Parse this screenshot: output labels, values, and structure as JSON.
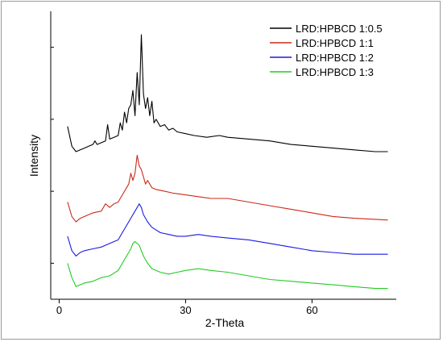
{
  "chart_data": {
    "type": "line",
    "xlabel": "2-Theta",
    "ylabel": "Intensity",
    "xlim": [
      -2,
      80
    ],
    "xticks": [
      0,
      30,
      60
    ],
    "yticks_labeled": false,
    "grid": false,
    "legend_placement": "top-right",
    "series": [
      {
        "name": "LRD:HPBCD 1:0.5",
        "color": "#000000",
        "offset": 4.1,
        "x": [
          2,
          3,
          4,
          5,
          6,
          7,
          8,
          8.5,
          9,
          10,
          11,
          11.5,
          12,
          13,
          14,
          14.5,
          15,
          15.5,
          16,
          16.5,
          17,
          17.5,
          18,
          18.5,
          19,
          19.5,
          20,
          20.5,
          21,
          21.5,
          22,
          22.5,
          23,
          24,
          25,
          26,
          27,
          28,
          30,
          32,
          35,
          38,
          40,
          45,
          50,
          55,
          60,
          65,
          70,
          75,
          78
        ],
        "y": [
          0.7,
          0.15,
          0.0,
          0.05,
          0.1,
          0.15,
          0.2,
          0.3,
          0.2,
          0.25,
          0.3,
          0.75,
          0.35,
          0.4,
          0.45,
          0.8,
          0.6,
          1.1,
          0.8,
          1.2,
          1.3,
          1.7,
          1.0,
          2.2,
          1.3,
          3.25,
          1.6,
          1.2,
          1.5,
          1.0,
          1.4,
          0.8,
          0.9,
          0.7,
          0.75,
          0.6,
          0.65,
          0.55,
          0.5,
          0.45,
          0.4,
          0.45,
          0.4,
          0.35,
          0.3,
          0.2,
          0.15,
          0.1,
          0.05,
          0.0,
          0.0
        ]
      },
      {
        "name": "LRD:HPBCD 1:1",
        "color": "#cc2a1a",
        "offset": 2.2,
        "x": [
          2,
          3,
          4,
          5,
          6,
          7,
          8,
          10,
          11,
          12,
          13,
          14,
          15,
          16,
          16.5,
          17,
          17.5,
          18,
          18.5,
          19,
          19.5,
          20,
          20.5,
          21,
          22,
          23,
          25,
          27,
          30,
          33,
          36,
          40,
          45,
          50,
          55,
          60,
          65,
          70,
          75,
          78
        ],
        "y": [
          0.5,
          0.1,
          -0.05,
          0.05,
          0.1,
          0.15,
          0.2,
          0.25,
          0.45,
          0.35,
          0.45,
          0.5,
          0.7,
          0.9,
          1.0,
          1.3,
          1.1,
          1.3,
          1.8,
          1.5,
          1.4,
          1.2,
          1.0,
          1.1,
          0.9,
          0.85,
          0.8,
          0.75,
          0.7,
          0.65,
          0.6,
          0.6,
          0.5,
          0.4,
          0.3,
          0.2,
          0.1,
          0.05,
          0.02,
          0.0
        ]
      },
      {
        "name": "LRD:HPBCD 1:2",
        "color": "#1a1ae6",
        "offset": 1.25,
        "x": [
          2,
          3,
          4,
          5,
          6,
          8,
          10,
          12,
          14,
          15,
          16,
          17,
          18,
          18.5,
          19,
          19.5,
          20,
          21,
          22,
          24,
          26,
          28,
          30,
          33,
          36,
          40,
          45,
          50,
          55,
          60,
          65,
          70,
          75,
          78
        ],
        "y": [
          0.5,
          0.1,
          -0.05,
          0.05,
          0.1,
          0.15,
          0.2,
          0.3,
          0.4,
          0.6,
          0.8,
          1.0,
          1.2,
          1.3,
          1.4,
          1.3,
          1.1,
          0.9,
          0.75,
          0.6,
          0.55,
          0.5,
          0.5,
          0.55,
          0.5,
          0.45,
          0.4,
          0.3,
          0.2,
          0.1,
          0.05,
          0.0,
          0.0,
          0.0
        ]
      },
      {
        "name": "LRD:HPBCD 1:3",
        "color": "#22cc22",
        "offset": 0.3,
        "x": [
          2,
          3,
          4,
          5,
          6,
          8,
          10,
          12,
          14,
          15,
          16,
          17,
          17.5,
          18,
          18.5,
          19,
          19.5,
          20,
          21,
          22,
          24,
          26,
          28,
          30,
          33,
          36,
          40,
          45,
          50,
          55,
          60,
          65,
          70,
          75,
          78
        ],
        "y": [
          0.7,
          0.3,
          0.05,
          0.1,
          0.15,
          0.2,
          0.3,
          0.35,
          0.5,
          0.7,
          0.9,
          1.1,
          1.25,
          1.3,
          1.25,
          1.2,
          1.05,
          0.9,
          0.7,
          0.55,
          0.45,
          0.4,
          0.45,
          0.5,
          0.55,
          0.5,
          0.45,
          0.35,
          0.25,
          0.2,
          0.15,
          0.1,
          0.05,
          0.0,
          0.0
        ]
      }
    ]
  }
}
